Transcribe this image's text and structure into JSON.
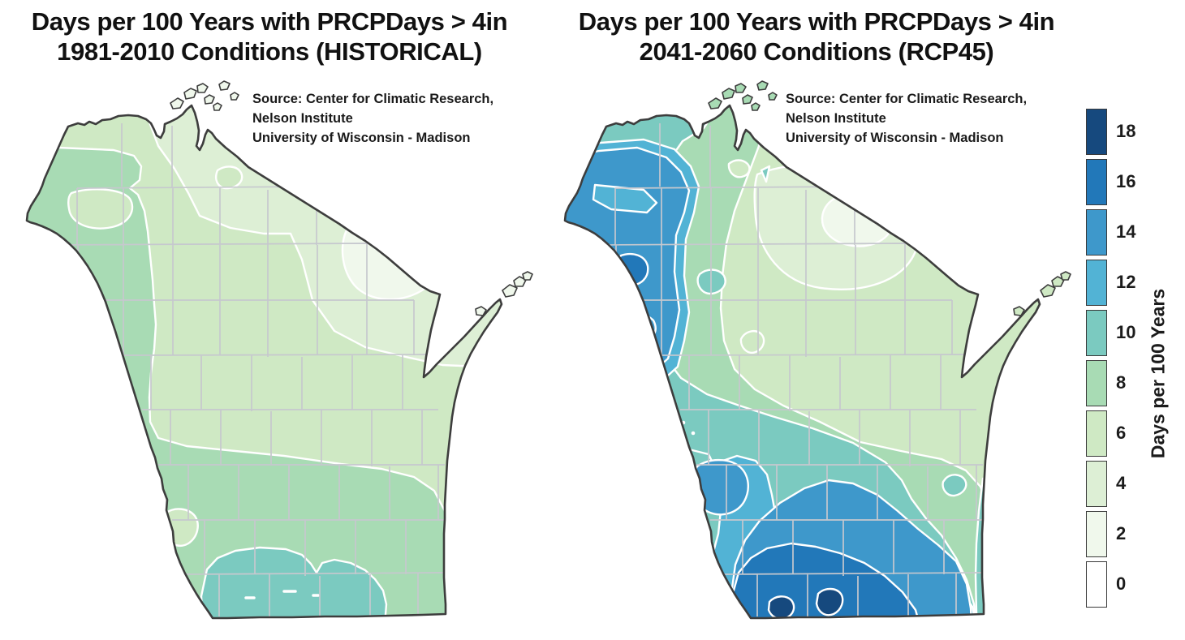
{
  "page": {
    "background": "#ffffff"
  },
  "panels": [
    {
      "id": "historical",
      "title_line1": "Days per 100 Years with PRCPDays > 4in",
      "title_line2": "1981-2010 Conditions (HISTORICAL)",
      "source": {
        "line1": "Source:  Center for Climatic Research,",
        "line2": "Nelson Institute",
        "line3": "University of Wisconsin - Madison"
      }
    },
    {
      "id": "rcp45",
      "title_line1": "Days per 100 Years with PRCPDays > 4in",
      "title_line2": "2041-2060 Conditions (RCP45)",
      "source": {
        "line1": "Source:  Center for Climatic Research,",
        "line2": "Nelson Institute",
        "line3": "University of Wisconsin - Madison"
      }
    }
  ],
  "legend": {
    "axis_label": "Days per 100 Years",
    "entries": [
      {
        "value": "18",
        "color": "#16497e"
      },
      {
        "value": "16",
        "color": "#2278b9"
      },
      {
        "value": "14",
        "color": "#3e98cb"
      },
      {
        "value": "12",
        "color": "#52b3d5"
      },
      {
        "value": "10",
        "color": "#7bcac0"
      },
      {
        "value": "8",
        "color": "#a8dbb4"
      },
      {
        "value": "6",
        "color": "#cfe9c4"
      },
      {
        "value": "4",
        "color": "#ddefd5"
      },
      {
        "value": "2",
        "color": "#f0f8ec"
      },
      {
        "value": "0",
        "color": "#ffffff"
      }
    ]
  },
  "map": {
    "region": "Wisconsin",
    "outline_color": "#3d3d3d",
    "county_line_color": "#c6c8ce",
    "contour_line_color": "#ffffff"
  }
}
